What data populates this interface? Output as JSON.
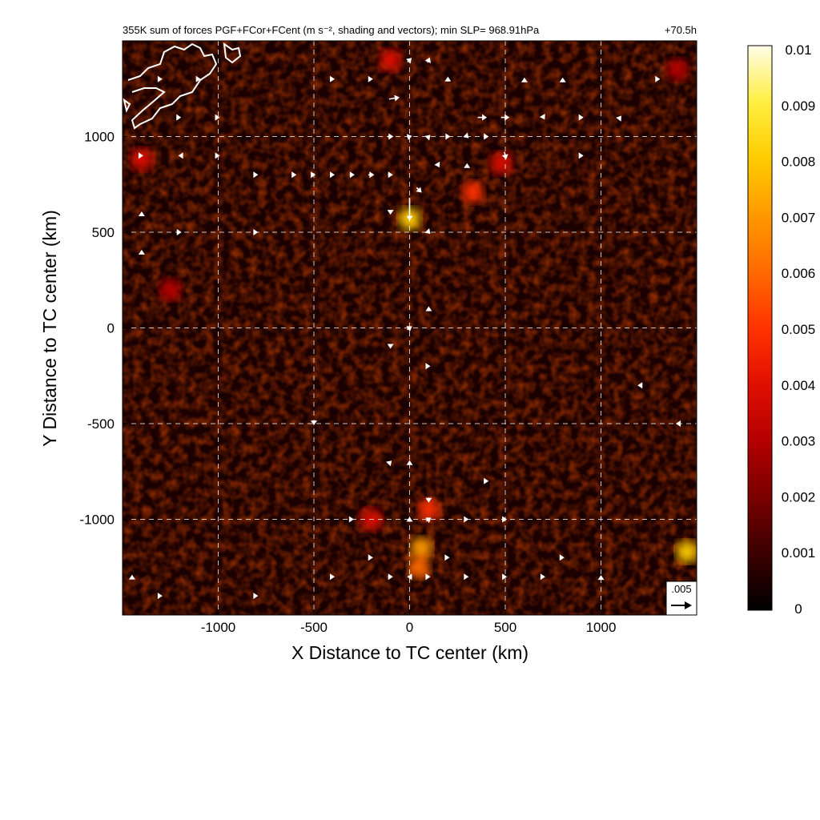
{
  "chart_data": {
    "type": "heatmap",
    "title": "355K sum of forces PGF+FCor+FCent (m s⁻², shading and vectors); min SLP= 968.91hPa",
    "time_label": "+70.5h",
    "xlabel": "X Distance to TC center (km)",
    "ylabel": "Y Distance to TC center (km)",
    "xlim": [
      -1500,
      1500
    ],
    "ylim": [
      -1500,
      1500
    ],
    "x_ticks": [
      -1000,
      -500,
      0,
      500,
      1000
    ],
    "y_ticks": [
      1000,
      500,
      0,
      -500,
      -1000
    ],
    "grid": true,
    "grid_style": "dashed",
    "colorbar": {
      "min": 0,
      "max": 0.01,
      "ticks": [
        "0.01",
        "0.009",
        "0.008",
        "0.007",
        "0.006",
        "0.005",
        "0.004",
        "0.003",
        "0.002",
        "0.001",
        "0"
      ],
      "colormap": [
        "#000000",
        "#3a0000",
        "#7a0000",
        "#b30000",
        "#e01000",
        "#ff3300",
        "#ff6a00",
        "#ff9900",
        "#ffcc00",
        "#ffef40",
        "#fffde8"
      ]
    },
    "reference_vector": {
      "label": ".005",
      "value": 0.005
    },
    "hotspots": [
      {
        "x": 0,
        "y": 570,
        "value": 0.008
      },
      {
        "x": 60,
        "y": -1150,
        "value": 0.007
      },
      {
        "x": 50,
        "y": -1250,
        "value": 0.006
      },
      {
        "x": 1450,
        "y": -1170,
        "value": 0.008
      },
      {
        "x": -200,
        "y": -1000,
        "value": 0.004
      },
      {
        "x": 330,
        "y": 710,
        "value": 0.005
      },
      {
        "x": 480,
        "y": 860,
        "value": 0.004
      },
      {
        "x": -1400,
        "y": 880,
        "value": 0.004
      },
      {
        "x": 100,
        "y": -950,
        "value": 0.005
      },
      {
        "x": -100,
        "y": 1400,
        "value": 0.004
      },
      {
        "x": 1400,
        "y": 1350,
        "value": 0.003
      },
      {
        "x": -1250,
        "y": 200,
        "value": 0.003
      }
    ],
    "vectors": [
      {
        "x": 0,
        "y": 620,
        "u": 0,
        "v": -0.0055
      },
      {
        "x": 50,
        "y": 720,
        "u": 0.0012,
        "v": -0.0012
      },
      {
        "x": -80,
        "y": 1200,
        "u": 0.0025,
        "v": 0.0004
      },
      {
        "x": 380,
        "y": 1100,
        "u": 0.0022,
        "v": 0.0
      },
      {
        "x": 500,
        "y": 1100,
        "u": 0.002,
        "v": 0.0
      },
      {
        "x": 500,
        "y": 900,
        "u": 0.0004,
        "v": -0.0018
      },
      {
        "x": 0,
        "y": 1400,
        "u": 0.001,
        "v": 0.001
      },
      {
        "x": 100,
        "y": 1400,
        "u": 0.0005,
        "v": 0.0012
      },
      {
        "x": 200,
        "y": 1300,
        "u": 0.0,
        "v": 0.0012
      },
      {
        "x": -100,
        "y": 1000,
        "u": 0.0014,
        "v": 0.0
      },
      {
        "x": 0,
        "y": 1000,
        "u": 0.0012,
        "v": 0.0003
      },
      {
        "x": 100,
        "y": 1000,
        "u": 0.0008,
        "v": 0.0008
      },
      {
        "x": 200,
        "y": 1000,
        "u": 0.0012,
        "v": 0.0
      },
      {
        "x": 300,
        "y": 1000,
        "u": 0.0008,
        "v": -0.0008
      },
      {
        "x": 400,
        "y": 1000,
        "u": 0.0012,
        "v": 0.0
      },
      {
        "x": -300,
        "y": 800,
        "u": 0.0012,
        "v": 0.0
      },
      {
        "x": -200,
        "y": 800,
        "u": 0.0014,
        "v": 0.0
      },
      {
        "x": -100,
        "y": 800,
        "u": 0.0012,
        "v": 0.0
      },
      {
        "x": -400,
        "y": 800,
        "u": 0.0008,
        "v": 0.0
      },
      {
        "x": -500,
        "y": 800,
        "u": 0.0008,
        "v": 0.0
      },
      {
        "x": -600,
        "y": 800,
        "u": 0.0008,
        "v": 0.0
      },
      {
        "x": -800,
        "y": 800,
        "u": 0.0008,
        "v": 0.0
      },
      {
        "x": -1000,
        "y": 900,
        "u": 0.0008,
        "v": 0.0
      },
      {
        "x": -1200,
        "y": 900,
        "u": -0.0008,
        "v": 0.0
      },
      {
        "x": -1400,
        "y": 900,
        "u": 0.0008,
        "v": 0.0
      },
      {
        "x": 150,
        "y": 850,
        "u": 0.0006,
        "v": -0.001
      },
      {
        "x": 300,
        "y": 850,
        "u": 0.0,
        "v": 0.001
      },
      {
        "x": 700,
        "y": 1100,
        "u": 0.0006,
        "v": -0.001
      },
      {
        "x": 900,
        "y": 1100,
        "u": 0.0008,
        "v": 0.0
      },
      {
        "x": 1100,
        "y": 1100,
        "u": 0.0006,
        "v": 0.0008
      },
      {
        "x": 1300,
        "y": 1300,
        "u": 0.0008,
        "v": 0.0
      },
      {
        "x": 600,
        "y": 1300,
        "u": 0.0,
        "v": 0.0008
      },
      {
        "x": 800,
        "y": 1300,
        "u": 0.0,
        "v": 0.0008
      },
      {
        "x": -400,
        "y": 1300,
        "u": 0.0008,
        "v": 0.0
      },
      {
        "x": -200,
        "y": 1300,
        "u": 0.0008,
        "v": 0.0
      },
      {
        "x": -1200,
        "y": 1100,
        "u": 0.0006,
        "v": 0.0
      },
      {
        "x": -1000,
        "y": 1100,
        "u": 0.0008,
        "v": 0.0
      },
      {
        "x": -100,
        "y": 600,
        "u": 0.0,
        "v": -0.0008
      },
      {
        "x": 100,
        "y": 500,
        "u": 0.0008,
        "v": -0.0008
      },
      {
        "x": -1400,
        "y": 600,
        "u": 0.0,
        "v": 0.0008
      },
      {
        "x": -1200,
        "y": 500,
        "u": 0.0008,
        "v": 0.0
      },
      {
        "x": -800,
        "y": 500,
        "u": 0.0008,
        "v": 0.0
      },
      {
        "x": -1400,
        "y": 400,
        "u": 0.0,
        "v": 0.0008
      },
      {
        "x": 0,
        "y": 0,
        "u": 0.0012,
        "v": 0.0008
      },
      {
        "x": 100,
        "y": 100,
        "u": 0.0,
        "v": 0.0012
      },
      {
        "x": -100,
        "y": -100,
        "u": 0.0,
        "v": -0.0008
      },
      {
        "x": 100,
        "y": -200,
        "u": 0.0008,
        "v": 0.0
      },
      {
        "x": 1200,
        "y": -300,
        "u": -0.0008,
        "v": 0.0
      },
      {
        "x": 1400,
        "y": -500,
        "u": -0.0008,
        "v": 0.0
      },
      {
        "x": -500,
        "y": -500,
        "u": 0.0,
        "v": -0.0008
      },
      {
        "x": 400,
        "y": -800,
        "u": 0.0012,
        "v": 0.0
      },
      {
        "x": 0,
        "y": -700,
        "u": 0.0,
        "v": 0.0008
      },
      {
        "x": -100,
        "y": -700,
        "u": 0.0006,
        "v": 0.0006
      },
      {
        "x": 100,
        "y": -900,
        "u": 0.0,
        "v": -0.0012
      },
      {
        "x": 100,
        "y": -1000,
        "u": 0.0012,
        "v": 0.0008
      },
      {
        "x": 0,
        "y": -1000,
        "u": 0.0,
        "v": 0.0012
      },
      {
        "x": -300,
        "y": -1000,
        "u": 0.0008,
        "v": 0.0
      },
      {
        "x": -100,
        "y": -1300,
        "u": 0.0012,
        "v": 0.0
      },
      {
        "x": 0,
        "y": -1300,
        "u": -0.0012,
        "v": 0.0
      },
      {
        "x": 100,
        "y": -1300,
        "u": 0.0008,
        "v": 0.0
      },
      {
        "x": 200,
        "y": -1200,
        "u": 0.0008,
        "v": 0.0
      },
      {
        "x": 300,
        "y": -1300,
        "u": 0.0008,
        "v": 0.0
      },
      {
        "x": 500,
        "y": -1300,
        "u": 0.0008,
        "v": 0.0
      },
      {
        "x": 700,
        "y": -1300,
        "u": 0.0008,
        "v": 0.0
      },
      {
        "x": -800,
        "y": -1400,
        "u": 0.0008,
        "v": 0.0
      },
      {
        "x": -1300,
        "y": -1400,
        "u": 0.0008,
        "v": 0.0
      },
      {
        "x": -1450,
        "y": -1300,
        "u": 0.0,
        "v": 0.001
      },
      {
        "x": -400,
        "y": -1300,
        "u": 0.0008,
        "v": 0.0
      },
      {
        "x": -200,
        "y": -1200,
        "u": 0.0008,
        "v": 0.0
      },
      {
        "x": 300,
        "y": -1000,
        "u": 0.0008,
        "v": 0.0
      },
      {
        "x": 500,
        "y": -1000,
        "u": 0.0008,
        "v": 0.0
      },
      {
        "x": 800,
        "y": -1200,
        "u": 0.0008,
        "v": 0.0
      },
      {
        "x": 1000,
        "y": -1300,
        "u": 0.0,
        "v": 0.0008
      },
      {
        "x": -1300,
        "y": 1300,
        "u": 0.0008,
        "v": 0.0
      },
      {
        "x": -1100,
        "y": 1300,
        "u": 0.0008,
        "v": 0.0
      },
      {
        "x": 900,
        "y": 900,
        "u": 0.0008,
        "v": 0.0
      }
    ]
  }
}
